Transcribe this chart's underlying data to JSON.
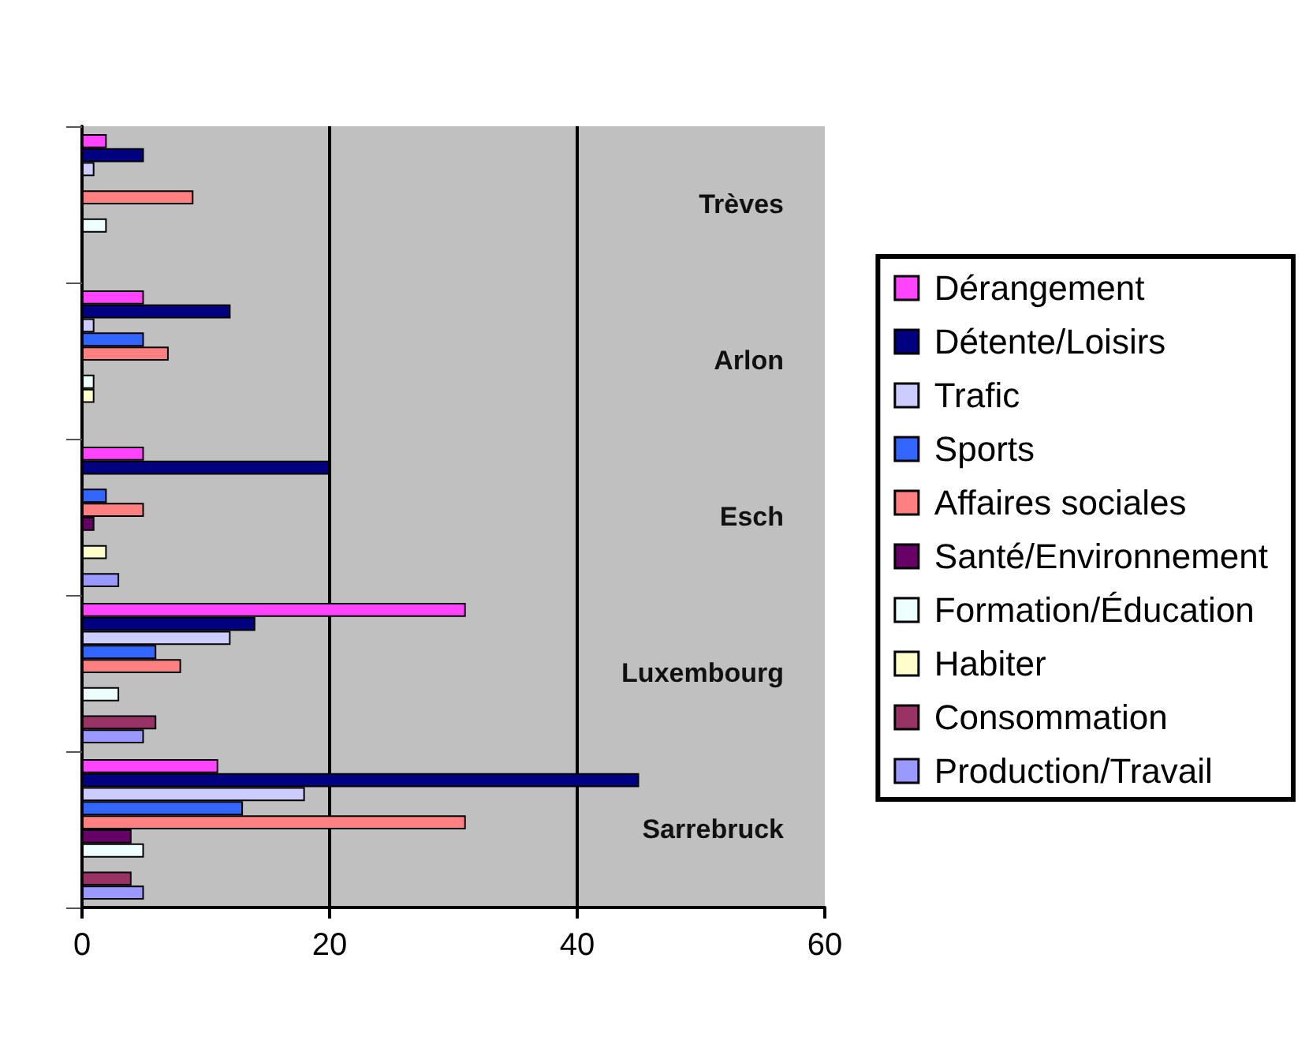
{
  "chart_data": {
    "type": "bar",
    "orientation": "horizontal",
    "categories": [
      "Trèves",
      "Arlon",
      "Esch",
      "Luxembourg",
      "Sarrebruck"
    ],
    "series": [
      {
        "name": "Dérangement",
        "color": "#ff44ff",
        "values": [
          2,
          5,
          5,
          31,
          11
        ]
      },
      {
        "name": "Détente/Loisirs",
        "color": "#000080",
        "values": [
          5,
          12,
          20,
          14,
          45
        ]
      },
      {
        "name": "Trafic",
        "color": "#ccccff",
        "values": [
          1,
          1,
          0,
          12,
          18
        ]
      },
      {
        "name": "Sports",
        "color": "#3366ff",
        "values": [
          0,
          5,
          2,
          6,
          13
        ]
      },
      {
        "name": "Affaires sociales",
        "color": "#ff8080",
        "values": [
          9,
          7,
          5,
          8,
          31
        ]
      },
      {
        "name": "Santé/Environnement",
        "color": "#660066",
        "values": [
          0,
          0,
          1,
          0,
          4
        ]
      },
      {
        "name": "Formation/Éducation",
        "color": "#eeffff",
        "values": [
          2,
          1,
          0,
          3,
          5
        ]
      },
      {
        "name": "Habiter",
        "color": "#ffffcc",
        "values": [
          0,
          1,
          2,
          0,
          0
        ]
      },
      {
        "name": "Consommation",
        "color": "#993366",
        "values": [
          0,
          0,
          0,
          6,
          4
        ]
      },
      {
        "name": "Production/Travail",
        "color": "#9999ff",
        "values": [
          0,
          0,
          3,
          5,
          5
        ]
      }
    ],
    "xlim": [
      0,
      60
    ],
    "xticks": [
      0,
      20,
      40,
      60
    ],
    "grid": "x",
    "legend": "right"
  }
}
